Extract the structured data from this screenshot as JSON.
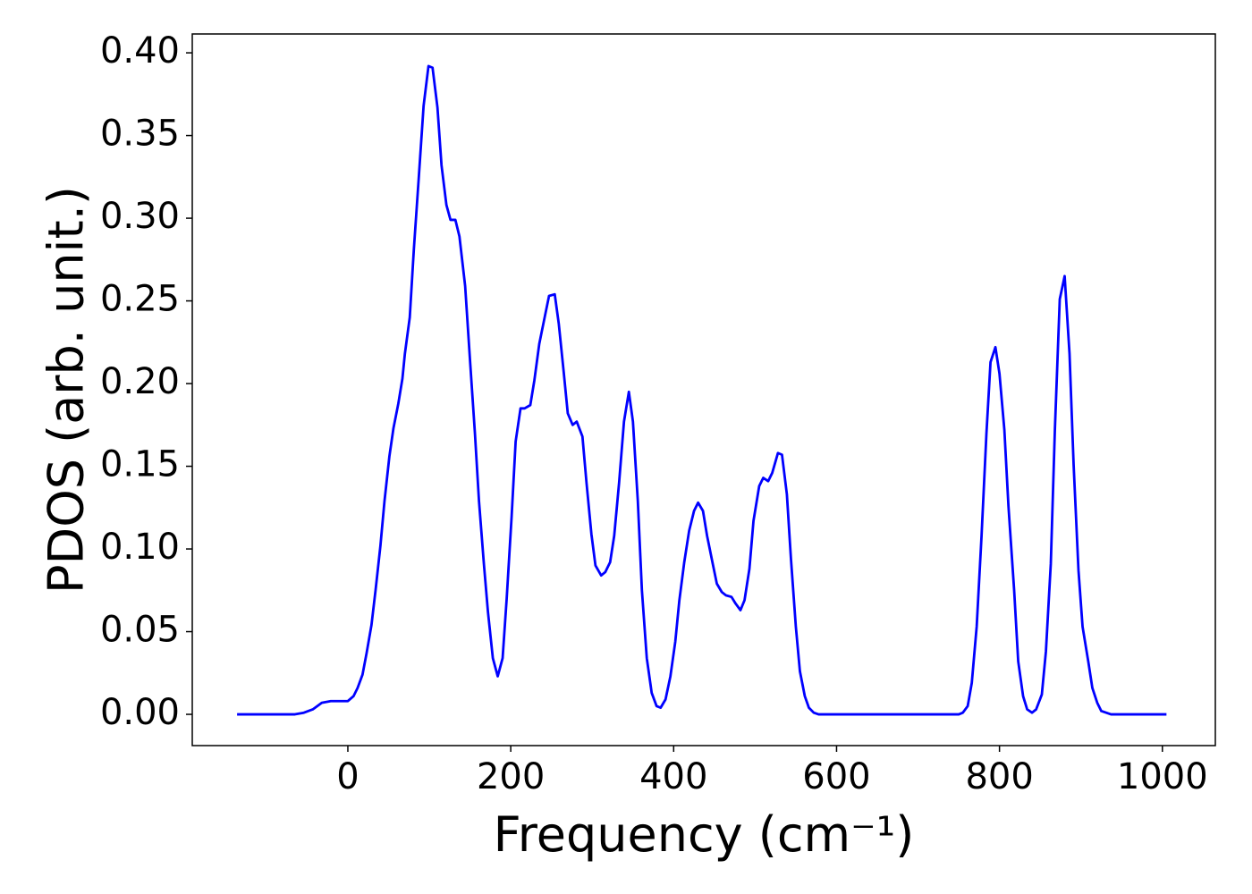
{
  "chart_data": {
    "type": "line",
    "xlabel": "Frequency (cm⁻¹)",
    "ylabel": "PDOS (arb. unit.)",
    "xlim": [
      -191,
      1065
    ],
    "ylim": [
      -0.0189,
      0.4114
    ],
    "xticks": [
      0,
      200,
      400,
      600,
      800,
      1000
    ],
    "yticks": [
      {
        "value": 0,
        "label": "0.00"
      },
      0.05,
      {
        "value": 0.1,
        "label": "0.10"
      },
      0.15,
      {
        "value": 0.2,
        "label": "0.20"
      },
      0.25,
      {
        "value": 0.3,
        "label": "0.30"
      },
      0.35,
      {
        "value": 0.4,
        "label": "0.40"
      }
    ],
    "grid": false,
    "x": [
      -136,
      -65,
      -54,
      -43,
      -32,
      -21,
      -7,
      0,
      7,
      12,
      18,
      23,
      29,
      34,
      40,
      45,
      51,
      56,
      62,
      67,
      70,
      76,
      81,
      87,
      93,
      99,
      104,
      110,
      115,
      121,
      126,
      132,
      137,
      144,
      150,
      156,
      161,
      167,
      172,
      178,
      184,
      190,
      195,
      201,
      206,
      212,
      217,
      224,
      229,
      235,
      242,
      247,
      254,
      259,
      265,
      270,
      276,
      281,
      288,
      293,
      299,
      304,
      311,
      316,
      322,
      327,
      333,
      339,
      345,
      350,
      356,
      361,
      367,
      373,
      379,
      384,
      390,
      396,
      402,
      407,
      413,
      419,
      425,
      430,
      436,
      441,
      448,
      453,
      459,
      464,
      471,
      476,
      482,
      487,
      493,
      498,
      505,
      510,
      516,
      521,
      528,
      533,
      539,
      544,
      550,
      555,
      561,
      566,
      572,
      578,
      750,
      755,
      761,
      766,
      772,
      778,
      784,
      789,
      795,
      800,
      806,
      811,
      818,
      823,
      829,
      834,
      840,
      845,
      852,
      857,
      863,
      868,
      874,
      880,
      886,
      891,
      897,
      902,
      909,
      914,
      920,
      925,
      931,
      937,
      1005
    ],
    "series": [
      {
        "color": "#0000ff",
        "values": [
          0,
          0,
          0.001,
          0.003,
          0.007,
          0.008,
          0.008,
          0.008,
          0.011,
          0.016,
          0.024,
          0.037,
          0.054,
          0.075,
          0.102,
          0.129,
          0.156,
          0.173,
          0.188,
          0.203,
          0.218,
          0.24,
          0.281,
          0.324,
          0.368,
          0.392,
          0.391,
          0.367,
          0.332,
          0.308,
          0.299,
          0.299,
          0.289,
          0.259,
          0.214,
          0.17,
          0.129,
          0.091,
          0.062,
          0.034,
          0.023,
          0.034,
          0.07,
          0.119,
          0.165,
          0.185,
          0.185,
          0.187,
          0.202,
          0.224,
          0.241,
          0.253,
          0.254,
          0.236,
          0.207,
          0.182,
          0.175,
          0.177,
          0.168,
          0.14,
          0.109,
          0.09,
          0.084,
          0.086,
          0.092,
          0.108,
          0.14,
          0.177,
          0.195,
          0.177,
          0.129,
          0.075,
          0.034,
          0.013,
          0.005,
          0.004,
          0.009,
          0.023,
          0.044,
          0.069,
          0.092,
          0.111,
          0.123,
          0.128,
          0.123,
          0.108,
          0.091,
          0.079,
          0.074,
          0.072,
          0.071,
          0.067,
          0.063,
          0.069,
          0.088,
          0.117,
          0.138,
          0.143,
          0.141,
          0.146,
          0.158,
          0.157,
          0.133,
          0.094,
          0.053,
          0.026,
          0.011,
          0.004,
          0.001,
          0,
          0,
          0.001,
          0.005,
          0.019,
          0.053,
          0.108,
          0.17,
          0.213,
          0.222,
          0.206,
          0.172,
          0.126,
          0.075,
          0.032,
          0.011,
          0.003,
          0.001,
          0.003,
          0.012,
          0.038,
          0.091,
          0.172,
          0.251,
          0.265,
          0.218,
          0.151,
          0.087,
          0.053,
          0.032,
          0.016,
          0.007,
          0.002,
          0.001,
          0,
          0
        ]
      }
    ]
  }
}
